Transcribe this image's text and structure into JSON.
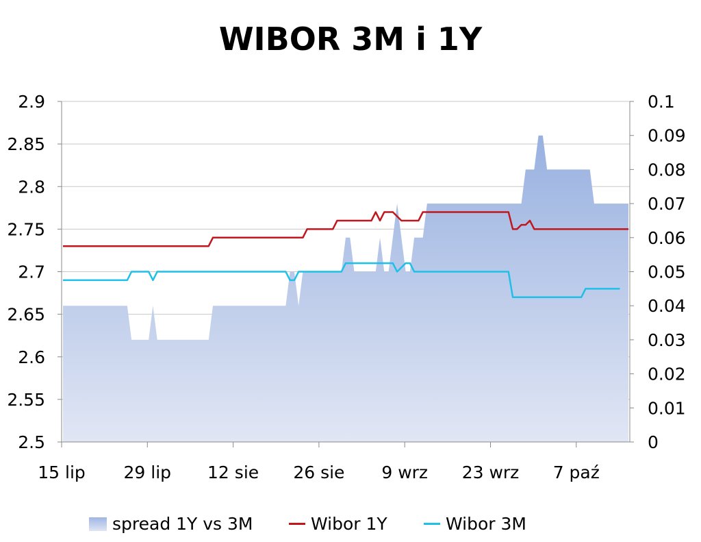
{
  "chart_data": {
    "type": "line",
    "title": "WIBOR 3M i 1Y",
    "x_tick_labels": [
      "15 lip",
      "29 lip",
      "12 sie",
      "26 sie",
      "9 wrz",
      "23 wrz",
      "7 paź"
    ],
    "y_left": {
      "min": 2.5,
      "max": 2.9,
      "ticks": [
        "2.5",
        "2.55",
        "2.6",
        "2.65",
        "2.7",
        "2.75",
        "2.8",
        "2.85",
        "2.9"
      ]
    },
    "y_right": {
      "min": 0,
      "max": 0.1,
      "ticks": [
        "0",
        "0.01",
        "0.02",
        "0.03",
        "0.04",
        "0.05",
        "0.06",
        "0.07",
        "0.08",
        "0.09",
        "0.1"
      ]
    },
    "grid": "horizontal",
    "legend_position": "bottom",
    "series": [
      {
        "name": "spread 1Y vs 3M",
        "type": "area",
        "axis": "right",
        "color": "#9fb6e3",
        "values": [
          0.04,
          0.04,
          0.04,
          0.04,
          0.04,
          0.04,
          0.04,
          0.04,
          0.04,
          0.04,
          0.04,
          0.04,
          0.04,
          0.04,
          0.04,
          0.04,
          0.03,
          0.03,
          0.03,
          0.03,
          0.03,
          0.04,
          0.03,
          0.03,
          0.03,
          0.03,
          0.03,
          0.03,
          0.03,
          0.03,
          0.03,
          0.03,
          0.03,
          0.03,
          0.03,
          0.04,
          0.04,
          0.04,
          0.04,
          0.04,
          0.04,
          0.04,
          0.04,
          0.04,
          0.04,
          0.04,
          0.04,
          0.04,
          0.04,
          0.04,
          0.04,
          0.04,
          0.04,
          0.05,
          0.05,
          0.04,
          0.05,
          0.05,
          0.05,
          0.05,
          0.05,
          0.05,
          0.05,
          0.05,
          0.05,
          0.05,
          0.06,
          0.06,
          0.05,
          0.05,
          0.05,
          0.05,
          0.05,
          0.05,
          0.06,
          0.05,
          0.05,
          0.06,
          0.07,
          0.06,
          0.05,
          0.05,
          0.06,
          0.06,
          0.06,
          0.07,
          0.07,
          0.07,
          0.07,
          0.07,
          0.07,
          0.07,
          0.07,
          0.07,
          0.07,
          0.07,
          0.07,
          0.07,
          0.07,
          0.07,
          0.07,
          0.07,
          0.07,
          0.07,
          0.07,
          0.07,
          0.07,
          0.07,
          0.08,
          0.08,
          0.08,
          0.09,
          0.09,
          0.08,
          0.08,
          0.08,
          0.08,
          0.08,
          0.08,
          0.08,
          0.08,
          0.08,
          0.08,
          0.08,
          0.07,
          0.07,
          0.07,
          0.07,
          0.07,
          0.07,
          0.07,
          0.07,
          0.07
        ]
      },
      {
        "name": "Wibor 1Y",
        "type": "line",
        "axis": "left",
        "color": "#c0161e",
        "values": [
          2.73,
          2.73,
          2.73,
          2.73,
          2.73,
          2.73,
          2.73,
          2.73,
          2.73,
          2.73,
          2.73,
          2.73,
          2.73,
          2.73,
          2.73,
          2.73,
          2.73,
          2.73,
          2.73,
          2.73,
          2.73,
          2.73,
          2.73,
          2.73,
          2.73,
          2.73,
          2.73,
          2.73,
          2.73,
          2.73,
          2.73,
          2.73,
          2.73,
          2.73,
          2.73,
          2.74,
          2.74,
          2.74,
          2.74,
          2.74,
          2.74,
          2.74,
          2.74,
          2.74,
          2.74,
          2.74,
          2.74,
          2.74,
          2.74,
          2.74,
          2.74,
          2.74,
          2.74,
          2.74,
          2.74,
          2.74,
          2.74,
          2.75,
          2.75,
          2.75,
          2.75,
          2.75,
          2.75,
          2.75,
          2.76,
          2.76,
          2.76,
          2.76,
          2.76,
          2.76,
          2.76,
          2.76,
          2.76,
          2.77,
          2.76,
          2.77,
          2.77,
          2.77,
          2.765,
          2.76,
          2.76,
          2.76,
          2.76,
          2.76,
          2.77,
          2.77,
          2.77,
          2.77,
          2.77,
          2.77,
          2.77,
          2.77,
          2.77,
          2.77,
          2.77,
          2.77,
          2.77,
          2.77,
          2.77,
          2.77,
          2.77,
          2.77,
          2.77,
          2.77,
          2.77,
          2.75,
          2.75,
          2.755,
          2.755,
          2.76,
          2.75,
          2.75,
          2.75,
          2.75,
          2.75,
          2.75,
          2.75,
          2.75,
          2.75,
          2.75,
          2.75,
          2.75,
          2.75,
          2.75,
          2.75,
          2.75,
          2.75,
          2.75,
          2.75,
          2.75,
          2.75,
          2.75,
          2.75
        ]
      },
      {
        "name": "Wibor 3M",
        "type": "line",
        "axis": "left",
        "color": "#1ec0e8",
        "values": [
          2.69,
          2.69,
          2.69,
          2.69,
          2.69,
          2.69,
          2.69,
          2.69,
          2.69,
          2.69,
          2.69,
          2.69,
          2.69,
          2.69,
          2.69,
          2.69,
          2.7,
          2.7,
          2.7,
          2.7,
          2.7,
          2.69,
          2.7,
          2.7,
          2.7,
          2.7,
          2.7,
          2.7,
          2.7,
          2.7,
          2.7,
          2.7,
          2.7,
          2.7,
          2.7,
          2.7,
          2.7,
          2.7,
          2.7,
          2.7,
          2.7,
          2.7,
          2.7,
          2.7,
          2.7,
          2.7,
          2.7,
          2.7,
          2.7,
          2.7,
          2.7,
          2.7,
          2.7,
          2.69,
          2.69,
          2.7,
          2.7,
          2.7,
          2.7,
          2.7,
          2.7,
          2.7,
          2.7,
          2.7,
          2.7,
          2.7,
          2.71,
          2.71,
          2.71,
          2.71,
          2.71,
          2.71,
          2.71,
          2.71,
          2.71,
          2.71,
          2.71,
          2.71,
          2.7,
          2.705,
          2.71,
          2.71,
          2.7,
          2.7,
          2.7,
          2.7,
          2.7,
          2.7,
          2.7,
          2.7,
          2.7,
          2.7,
          2.7,
          2.7,
          2.7,
          2.7,
          2.7,
          2.7,
          2.7,
          2.7,
          2.7,
          2.7,
          2.7,
          2.7,
          2.7,
          2.67,
          2.67,
          2.67,
          2.67,
          2.67,
          2.67,
          2.67,
          2.67,
          2.67,
          2.67,
          2.67,
          2.67,
          2.67,
          2.67,
          2.67,
          2.67,
          2.67,
          2.68,
          2.68,
          2.68,
          2.68,
          2.68,
          2.68,
          2.68,
          2.68,
          2.68
        ]
      }
    ]
  }
}
